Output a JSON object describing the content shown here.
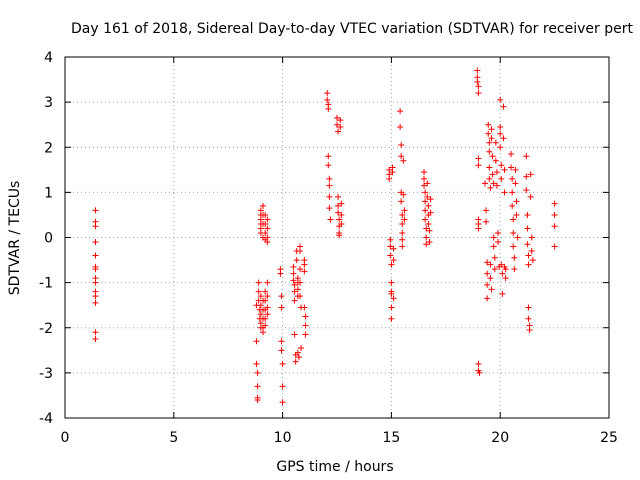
{
  "chart_data": {
    "type": "scatter",
    "title": "Day 161 of 2018, Sidereal Day-to-day VTEC variation (SDTVAR) for receiver pert",
    "xlabel": "GPS time / hours",
    "ylabel": "SDTVAR / TECUs",
    "xlim": [
      0,
      25
    ],
    "ylim": [
      -4,
      4
    ],
    "xticks": [
      0,
      5,
      10,
      15,
      20,
      25
    ],
    "yticks": [
      -4,
      -3,
      -2,
      -1,
      0,
      1,
      2,
      3,
      4
    ],
    "xtick_labels": [
      "0",
      "5",
      "10",
      "15",
      "20",
      "25"
    ],
    "ytick_labels": [
      "-4",
      "-3",
      "-2",
      "-1",
      "0",
      "1",
      "2",
      "3",
      "4"
    ],
    "grid": true,
    "marker": "+",
    "color": "#ff0000",
    "series": [
      {
        "name": "SDTVAR",
        "points": [
          [
            1.4,
            0.6
          ],
          [
            1.4,
            0.35
          ],
          [
            1.4,
            0.25
          ],
          [
            1.4,
            -0.1
          ],
          [
            1.4,
            -0.4
          ],
          [
            1.4,
            -0.65
          ],
          [
            1.4,
            -0.7
          ],
          [
            1.4,
            -0.9
          ],
          [
            1.4,
            -1.0
          ],
          [
            1.4,
            -1.2
          ],
          [
            1.4,
            -1.3
          ],
          [
            1.4,
            -1.45
          ],
          [
            1.4,
            -2.1
          ],
          [
            1.4,
            -2.25
          ],
          [
            8.8,
            -1.5
          ],
          [
            8.8,
            -2.3
          ],
          [
            8.8,
            -2.8
          ],
          [
            8.85,
            -3.0
          ],
          [
            8.85,
            -3.3
          ],
          [
            8.85,
            -3.55
          ],
          [
            8.85,
            -3.6
          ],
          [
            8.9,
            -1.0
          ],
          [
            8.9,
            -1.2
          ],
          [
            8.9,
            -1.4
          ],
          [
            8.95,
            -1.6
          ],
          [
            8.95,
            -1.8
          ],
          [
            9.0,
            0.6
          ],
          [
            9.0,
            0.5
          ],
          [
            9.0,
            0.4
          ],
          [
            9.0,
            0.3
          ],
          [
            9.0,
            0.2
          ],
          [
            9.0,
            0.1
          ],
          [
            9.0,
            -1.3
          ],
          [
            9.0,
            -1.5
          ],
          [
            9.0,
            -1.7
          ],
          [
            9.0,
            -1.9
          ],
          [
            9.0,
            -2.0
          ],
          [
            9.1,
            0.7
          ],
          [
            9.1,
            0.5
          ],
          [
            9.1,
            0.3
          ],
          [
            9.1,
            0.0
          ],
          [
            9.1,
            -1.4
          ],
          [
            9.1,
            -1.6
          ],
          [
            9.1,
            -1.8
          ],
          [
            9.1,
            -2.0
          ],
          [
            9.1,
            -2.1
          ],
          [
            9.2,
            0.5
          ],
          [
            9.2,
            0.3
          ],
          [
            9.2,
            0.1
          ],
          [
            9.2,
            -0.05
          ],
          [
            9.2,
            -1.2
          ],
          [
            9.2,
            -1.4
          ],
          [
            9.2,
            -1.6
          ],
          [
            9.2,
            -1.8
          ],
          [
            9.2,
            -1.95
          ],
          [
            9.3,
            0.4
          ],
          [
            9.3,
            0.2
          ],
          [
            9.3,
            0.0
          ],
          [
            9.3,
            -0.1
          ],
          [
            9.3,
            -1.0
          ],
          [
            9.3,
            -1.3
          ],
          [
            9.3,
            -1.55
          ],
          [
            9.3,
            -1.7
          ],
          [
            9.9,
            -0.7
          ],
          [
            9.9,
            -0.8
          ],
          [
            9.95,
            -1.3
          ],
          [
            9.95,
            -1.55
          ],
          [
            9.95,
            -2.3
          ],
          [
            9.95,
            -2.5
          ],
          [
            10.0,
            -2.8
          ],
          [
            10.0,
            -3.3
          ],
          [
            10.0,
            -3.65
          ],
          [
            10.5,
            -0.65
          ],
          [
            10.5,
            -0.8
          ],
          [
            10.5,
            -0.95
          ],
          [
            10.55,
            -1.05
          ],
          [
            10.55,
            -1.2
          ],
          [
            10.55,
            -1.4
          ],
          [
            10.55,
            -2.15
          ],
          [
            10.6,
            -2.6
          ],
          [
            10.6,
            -2.75
          ],
          [
            10.65,
            -0.3
          ],
          [
            10.65,
            -0.5
          ],
          [
            10.7,
            -0.9
          ],
          [
            10.7,
            -1.0
          ],
          [
            10.7,
            -1.15
          ],
          [
            10.7,
            -1.3
          ],
          [
            10.7,
            -2.55
          ],
          [
            10.75,
            -2.65
          ],
          [
            10.8,
            -0.2
          ],
          [
            10.8,
            -0.3
          ],
          [
            10.8,
            -0.7
          ],
          [
            10.8,
            -1.0
          ],
          [
            10.8,
            -1.3
          ],
          [
            10.85,
            -1.55
          ],
          [
            10.85,
            -2.45
          ],
          [
            11.0,
            -0.5
          ],
          [
            11.0,
            -0.6
          ],
          [
            11.0,
            -0.75
          ],
          [
            11.0,
            -1.55
          ],
          [
            11.05,
            -1.75
          ],
          [
            11.05,
            -1.95
          ],
          [
            11.05,
            -2.15
          ],
          [
            12.05,
            3.2
          ],
          [
            12.05,
            3.05
          ],
          [
            12.1,
            2.95
          ],
          [
            12.1,
            2.85
          ],
          [
            12.1,
            1.8
          ],
          [
            12.1,
            1.6
          ],
          [
            12.15,
            1.3
          ],
          [
            12.15,
            1.15
          ],
          [
            12.15,
            0.9
          ],
          [
            12.15,
            0.65
          ],
          [
            12.2,
            0.4
          ],
          [
            12.5,
            2.65
          ],
          [
            12.5,
            2.5
          ],
          [
            12.55,
            2.35
          ],
          [
            12.55,
            0.9
          ],
          [
            12.55,
            0.7
          ],
          [
            12.55,
            0.55
          ],
          [
            12.6,
            0.4
          ],
          [
            12.6,
            0.25
          ],
          [
            12.6,
            0.1
          ],
          [
            12.6,
            0.05
          ],
          [
            12.65,
            2.6
          ],
          [
            12.65,
            2.45
          ],
          [
            12.7,
            0.75
          ],
          [
            12.7,
            0.5
          ],
          [
            12.7,
            0.3
          ],
          [
            14.9,
            1.5
          ],
          [
            14.9,
            1.4
          ],
          [
            14.9,
            1.3
          ],
          [
            14.95,
            -0.05
          ],
          [
            14.95,
            -0.2
          ],
          [
            14.95,
            -0.4
          ],
          [
            15.0,
            -0.6
          ],
          [
            15.0,
            -1.0
          ],
          [
            15.0,
            -1.2
          ],
          [
            15.0,
            -1.25
          ],
          [
            15.0,
            -1.55
          ],
          [
            15.0,
            -1.8
          ],
          [
            15.05,
            1.55
          ],
          [
            15.05,
            1.45
          ],
          [
            15.1,
            -0.25
          ],
          [
            15.1,
            -0.5
          ],
          [
            15.1,
            -1.35
          ],
          [
            15.4,
            2.8
          ],
          [
            15.4,
            2.45
          ],
          [
            15.45,
            2.05
          ],
          [
            15.45,
            1.8
          ],
          [
            15.45,
            1.0
          ],
          [
            15.45,
            0.8
          ],
          [
            15.5,
            0.5
          ],
          [
            15.5,
            0.3
          ],
          [
            15.5,
            0.1
          ],
          [
            15.5,
            -0.05
          ],
          [
            15.5,
            -0.2
          ],
          [
            15.55,
            1.7
          ],
          [
            15.55,
            0.95
          ],
          [
            15.6,
            0.6
          ],
          [
            15.6,
            0.4
          ],
          [
            16.5,
            1.45
          ],
          [
            16.5,
            1.3
          ],
          [
            16.5,
            1.15
          ],
          [
            16.55,
            1.0
          ],
          [
            16.55,
            0.8
          ],
          [
            16.55,
            0.6
          ],
          [
            16.55,
            0.4
          ],
          [
            16.6,
            0.2
          ],
          [
            16.6,
            0.0
          ],
          [
            16.6,
            -0.15
          ],
          [
            16.65,
            1.2
          ],
          [
            16.65,
            0.9
          ],
          [
            16.7,
            0.7
          ],
          [
            16.7,
            0.5
          ],
          [
            16.7,
            0.3
          ],
          [
            16.75,
            0.15
          ],
          [
            16.75,
            -0.1
          ],
          [
            16.8,
            0.55
          ],
          [
            16.8,
            0.85
          ],
          [
            18.95,
            3.7
          ],
          [
            18.95,
            3.55
          ],
          [
            18.95,
            3.45
          ],
          [
            19.0,
            3.35
          ],
          [
            19.0,
            3.2
          ],
          [
            19.0,
            1.75
          ],
          [
            19.0,
            1.6
          ],
          [
            19.0,
            0.4
          ],
          [
            19.0,
            0.3
          ],
          [
            19.0,
            0.2
          ],
          [
            19.0,
            -2.8
          ],
          [
            19.0,
            -2.95
          ],
          [
            19.05,
            -3.0
          ],
          [
            19.3,
            1.2
          ],
          [
            19.35,
            0.6
          ],
          [
            19.35,
            0.35
          ],
          [
            19.4,
            -0.55
          ],
          [
            19.4,
            -0.8
          ],
          [
            19.4,
            -1.05
          ],
          [
            19.4,
            -1.35
          ],
          [
            19.45,
            2.5
          ],
          [
            19.45,
            2.3
          ],
          [
            19.5,
            2.1
          ],
          [
            19.5,
            1.9
          ],
          [
            19.5,
            1.55
          ],
          [
            19.5,
            1.3
          ],
          [
            19.55,
            1.1
          ],
          [
            19.55,
            -0.6
          ],
          [
            19.55,
            -0.9
          ],
          [
            19.6,
            -1.15
          ],
          [
            19.6,
            2.4
          ],
          [
            19.6,
            2.2
          ],
          [
            19.65,
            1.8
          ],
          [
            19.65,
            1.4
          ],
          [
            19.7,
            1.2
          ],
          [
            19.7,
            0.0
          ],
          [
            19.7,
            -0.2
          ],
          [
            19.75,
            -0.45
          ],
          [
            19.75,
            -0.7
          ],
          [
            19.8,
            2.1
          ],
          [
            19.8,
            1.7
          ],
          [
            19.85,
            1.45
          ],
          [
            19.85,
            1.15
          ],
          [
            19.9,
            0.1
          ],
          [
            19.9,
            -0.1
          ],
          [
            19.95,
            -0.65
          ],
          [
            20.0,
            3.05
          ],
          [
            20.0,
            2.45
          ],
          [
            20.0,
            2.3
          ],
          [
            20.0,
            2.0
          ],
          [
            20.05,
            1.6
          ],
          [
            20.05,
            1.3
          ],
          [
            20.05,
            -0.6
          ],
          [
            20.1,
            -0.8
          ],
          [
            20.1,
            -1.25
          ],
          [
            20.15,
            2.9
          ],
          [
            20.15,
            2.2
          ],
          [
            20.2,
            1.5
          ],
          [
            20.2,
            1.0
          ],
          [
            20.2,
            -0.65
          ],
          [
            20.25,
            -0.7
          ],
          [
            20.25,
            -0.9
          ],
          [
            20.5,
            1.85
          ],
          [
            20.5,
            1.55
          ],
          [
            20.55,
            1.3
          ],
          [
            20.55,
            1.0
          ],
          [
            20.55,
            0.7
          ],
          [
            20.6,
            0.4
          ],
          [
            20.6,
            0.1
          ],
          [
            20.6,
            -0.2
          ],
          [
            20.65,
            -0.45
          ],
          [
            20.65,
            -0.7
          ],
          [
            20.7,
            1.5
          ],
          [
            20.7,
            1.2
          ],
          [
            20.75,
            0.8
          ],
          [
            20.75,
            0.5
          ],
          [
            20.8,
            0.0
          ],
          [
            21.2,
            1.8
          ],
          [
            21.2,
            1.35
          ],
          [
            21.2,
            1.05
          ],
          [
            21.25,
            0.5
          ],
          [
            21.25,
            0.2
          ],
          [
            21.25,
            -0.15
          ],
          [
            21.3,
            -0.4
          ],
          [
            21.3,
            -0.6
          ],
          [
            21.3,
            -1.55
          ],
          [
            21.3,
            -1.8
          ],
          [
            21.35,
            -1.95
          ],
          [
            21.35,
            -2.05
          ],
          [
            21.4,
            1.4
          ],
          [
            21.4,
            0.9
          ],
          [
            21.45,
            0.0
          ],
          [
            21.45,
            -0.3
          ],
          [
            21.5,
            -0.5
          ],
          [
            22.5,
            0.75
          ],
          [
            22.5,
            0.5
          ],
          [
            22.5,
            0.25
          ],
          [
            22.5,
            -0.2
          ]
        ]
      }
    ]
  }
}
